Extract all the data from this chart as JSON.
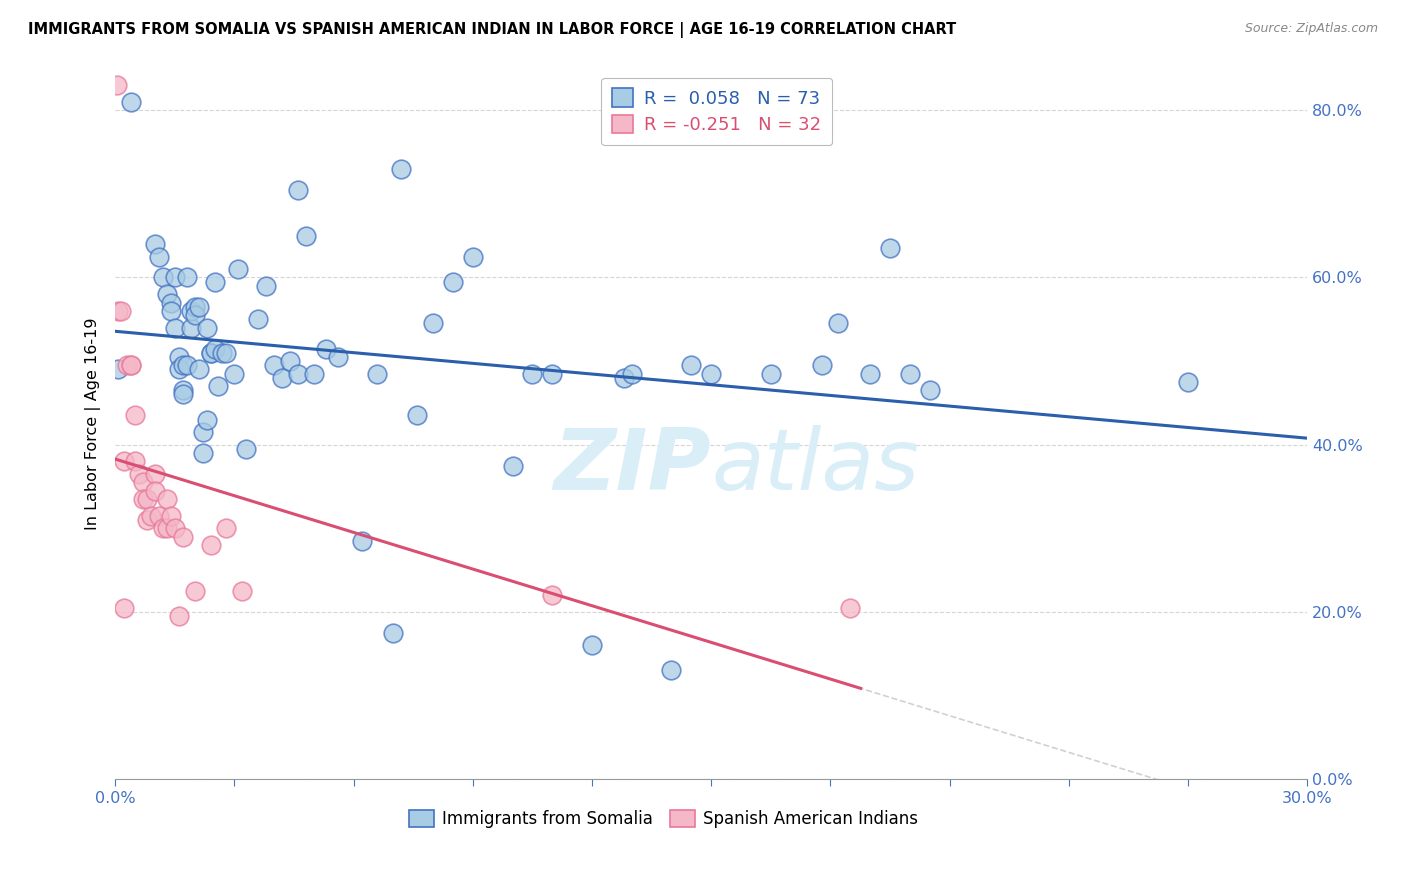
{
  "title": "IMMIGRANTS FROM SOMALIA VS SPANISH AMERICAN INDIAN IN LABOR FORCE | AGE 16-19 CORRELATION CHART",
  "source": "Source: ZipAtlas.com",
  "ylabel": "In Labor Force | Age 16-19",
  "xlim": [
    0.0,
    0.3
  ],
  "ylim": [
    0.0,
    0.85
  ],
  "yticks": [
    0.0,
    0.2,
    0.4,
    0.6,
    0.8
  ],
  "blue_R": 0.058,
  "blue_N": 73,
  "pink_R": -0.251,
  "pink_N": 32,
  "blue_color": "#a8cce4",
  "pink_color": "#f4b8c8",
  "blue_edge_color": "#4472c4",
  "pink_edge_color": "#e8789a",
  "blue_line_color": "#2b5fac",
  "pink_line_color": "#d94f72",
  "watermark_color": "#daeef8",
  "legend_label_blue": "Immigrants from Somalia",
  "legend_label_pink": "Spanish American Indians",
  "blue_x": [
    0.0008,
    0.004,
    0.01,
    0.011,
    0.012,
    0.013,
    0.014,
    0.014,
    0.015,
    0.015,
    0.016,
    0.016,
    0.017,
    0.017,
    0.017,
    0.018,
    0.018,
    0.019,
    0.019,
    0.02,
    0.02,
    0.021,
    0.021,
    0.022,
    0.022,
    0.023,
    0.023,
    0.024,
    0.024,
    0.025,
    0.025,
    0.026,
    0.027,
    0.028,
    0.03,
    0.031,
    0.033,
    0.036,
    0.038,
    0.04,
    0.042,
    0.044,
    0.046,
    0.046,
    0.048,
    0.05,
    0.053,
    0.056,
    0.062,
    0.066,
    0.07,
    0.072,
    0.076,
    0.08,
    0.085,
    0.09,
    0.1,
    0.105,
    0.11,
    0.12,
    0.128,
    0.14,
    0.165,
    0.178,
    0.182,
    0.19,
    0.195,
    0.2,
    0.205,
    0.145,
    0.15,
    0.27,
    0.13
  ],
  "blue_y": [
    0.49,
    0.81,
    0.64,
    0.625,
    0.6,
    0.58,
    0.57,
    0.56,
    0.6,
    0.54,
    0.505,
    0.49,
    0.465,
    0.46,
    0.495,
    0.495,
    0.6,
    0.54,
    0.56,
    0.565,
    0.555,
    0.565,
    0.49,
    0.415,
    0.39,
    0.54,
    0.43,
    0.51,
    0.51,
    0.595,
    0.515,
    0.47,
    0.51,
    0.51,
    0.485,
    0.61,
    0.395,
    0.55,
    0.59,
    0.495,
    0.48,
    0.5,
    0.485,
    0.705,
    0.65,
    0.485,
    0.515,
    0.505,
    0.285,
    0.485,
    0.175,
    0.73,
    0.435,
    0.545,
    0.595,
    0.625,
    0.375,
    0.485,
    0.485,
    0.16,
    0.48,
    0.13,
    0.485,
    0.495,
    0.545,
    0.485,
    0.635,
    0.485,
    0.465,
    0.495,
    0.485,
    0.475,
    0.485
  ],
  "pink_x": [
    0.0004,
    0.0008,
    0.0015,
    0.0022,
    0.0022,
    0.003,
    0.004,
    0.004,
    0.005,
    0.005,
    0.006,
    0.007,
    0.007,
    0.008,
    0.008,
    0.009,
    0.01,
    0.01,
    0.011,
    0.012,
    0.013,
    0.013,
    0.014,
    0.015,
    0.016,
    0.017,
    0.02,
    0.024,
    0.028,
    0.032,
    0.11,
    0.185
  ],
  "pink_y": [
    0.83,
    0.56,
    0.56,
    0.205,
    0.38,
    0.495,
    0.495,
    0.495,
    0.38,
    0.435,
    0.365,
    0.355,
    0.335,
    0.335,
    0.31,
    0.315,
    0.365,
    0.345,
    0.315,
    0.3,
    0.335,
    0.3,
    0.315,
    0.3,
    0.195,
    0.29,
    0.225,
    0.28,
    0.3,
    0.225,
    0.22,
    0.205
  ]
}
